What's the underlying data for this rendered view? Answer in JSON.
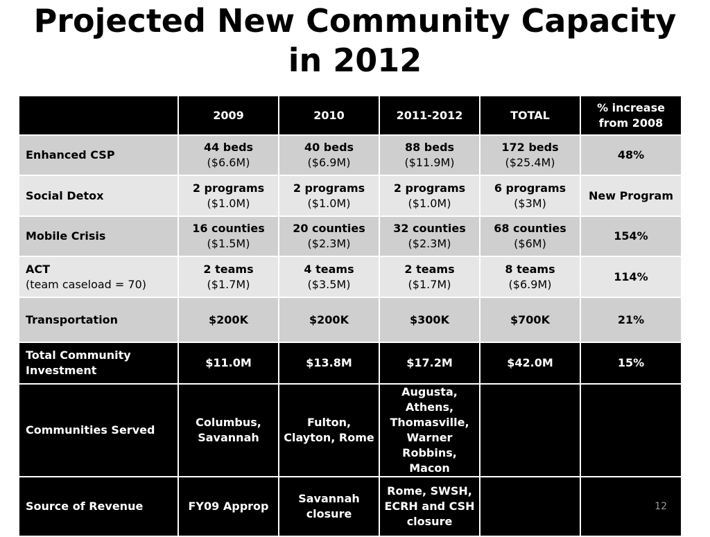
{
  "title": {
    "line1": "Projected New Community Capacity",
    "line2": "in 2012"
  },
  "table": {
    "headers": [
      "",
      "2009",
      "2010",
      "2011-2012",
      "TOTAL",
      "% increase from 2008"
    ],
    "rows": [
      {
        "label": "Enhanced CSP",
        "label_sub": "",
        "cells": [
          {
            "main": "44 beds",
            "sub": "($6.6M)"
          },
          {
            "main": "40 beds",
            "sub": "($6.9M)"
          },
          {
            "main": "88 beds",
            "sub": "($11.9M)"
          },
          {
            "main": "172 beds",
            "sub": "($25.4M)"
          },
          {
            "main": "48%",
            "sub": ""
          }
        ]
      },
      {
        "label": "Social Detox",
        "label_sub": "",
        "cells": [
          {
            "main": "2 programs",
            "sub": "($1.0M)"
          },
          {
            "main": "2 programs",
            "sub": "($1.0M)"
          },
          {
            "main": "2 programs",
            "sub": "($1.0M)"
          },
          {
            "main": "6 programs",
            "sub": "($3M)"
          },
          {
            "main": "New Program",
            "sub": ""
          }
        ]
      },
      {
        "label": "Mobile Crisis",
        "label_sub": "",
        "cells": [
          {
            "main": "16 counties",
            "sub": "($1.5M)"
          },
          {
            "main": "20 counties",
            "sub": "($2.3M)"
          },
          {
            "main": "32 counties",
            "sub": "($2.3M)"
          },
          {
            "main": "68 counties",
            "sub": "($6M)"
          },
          {
            "main": "154%",
            "sub": ""
          }
        ]
      },
      {
        "label": "ACT",
        "label_sub": "(team caseload = 70)",
        "cells": [
          {
            "main": "2 teams",
            "sub": "($1.7M)"
          },
          {
            "main": "4 teams",
            "sub": "($3.5M)"
          },
          {
            "main": "2 teams",
            "sub": "($1.7M)"
          },
          {
            "main": "8 teams",
            "sub": "($6.9M)"
          },
          {
            "main": "114%",
            "sub": ""
          }
        ]
      },
      {
        "label": "Transportation",
        "label_sub": "",
        "cells": [
          {
            "main": "$200K",
            "sub": ""
          },
          {
            "main": "$200K",
            "sub": ""
          },
          {
            "main": "$300K",
            "sub": ""
          },
          {
            "main": "$700K",
            "sub": ""
          },
          {
            "main": "21%",
            "sub": ""
          }
        ]
      },
      {
        "label": "Total Community Investment",
        "label_sub": "",
        "cells": [
          {
            "main": "$11.0M",
            "sub": ""
          },
          {
            "main": "$13.8M",
            "sub": ""
          },
          {
            "main": "$17.2M",
            "sub": ""
          },
          {
            "main": "$42.0M",
            "sub": ""
          },
          {
            "main": "15%",
            "sub": ""
          }
        ]
      },
      {
        "label": "Communities Served",
        "label_sub": "",
        "cells": [
          {
            "main": "Columbus, Savannah",
            "sub": ""
          },
          {
            "main": "Fulton, Clayton, Rome",
            "sub": ""
          },
          {
            "main": "Augusta, Athens, Thomasville, Warner Robbins, Macon",
            "sub": ""
          },
          {
            "main": "",
            "sub": ""
          },
          {
            "main": "",
            "sub": ""
          }
        ]
      },
      {
        "label": "Source of Revenue",
        "label_sub": "",
        "cells": [
          {
            "main": "FY09 Approp",
            "sub": ""
          },
          {
            "main": "Savannah closure",
            "sub": ""
          },
          {
            "main": "Rome, SWSH, ECRH and CSH closure",
            "sub": ""
          },
          {
            "main": "",
            "sub": ""
          },
          {
            "main": "",
            "sub": ""
          }
        ]
      }
    ]
  },
  "page_number": "12"
}
